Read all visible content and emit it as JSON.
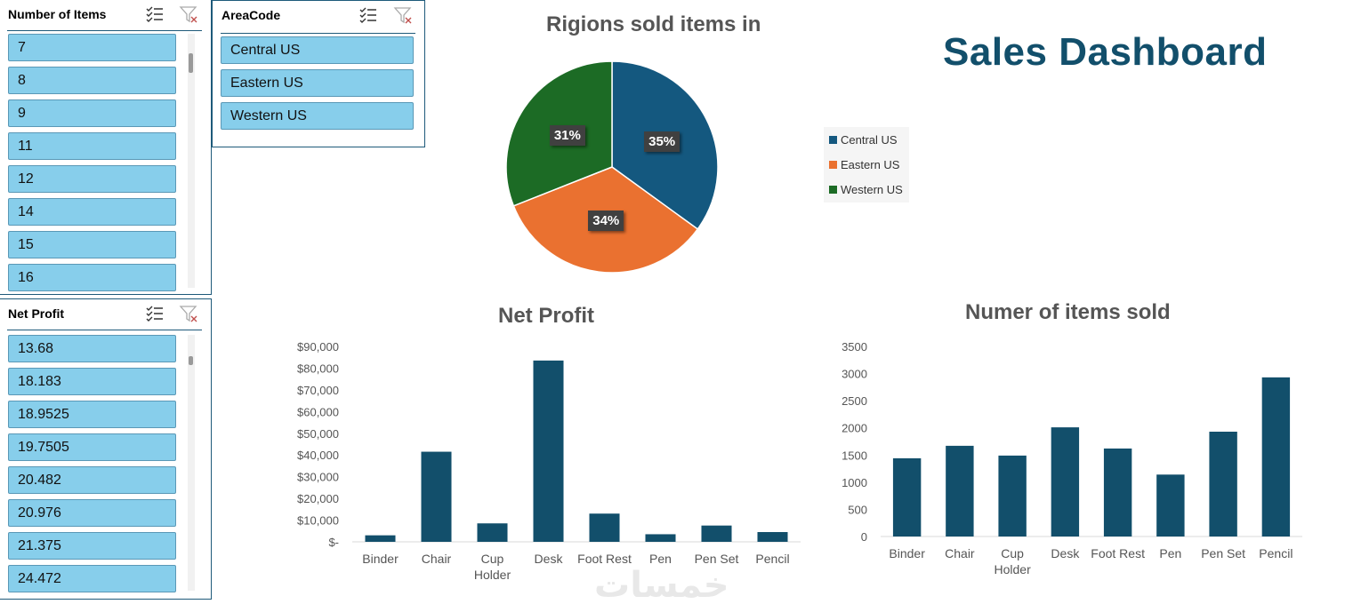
{
  "colors": {
    "accent": "#87ceeb",
    "central": "#14587f",
    "eastern": "#ea7130",
    "western": "#1c6b25",
    "bar": "#124f6b",
    "title": "#124f6b"
  },
  "slicer_items": {
    "title": "Number of Items",
    "icons": [
      "multi-select-icon",
      "clear-filter-icon"
    ],
    "items": [
      "7",
      "8",
      "9",
      "11",
      "12",
      "14",
      "15",
      "16"
    ]
  },
  "slicer_area": {
    "title": "AreaCode",
    "icons": [
      "multi-select-icon",
      "clear-filter-icon"
    ],
    "items": [
      "Central US",
      "Eastern US",
      "Western US"
    ]
  },
  "slicer_profit": {
    "title": "Net Profit",
    "icons": [
      "multi-select-icon",
      "clear-filter-icon"
    ],
    "items": [
      "13.68",
      "18.183",
      "18.9525",
      "19.7505",
      "20.482",
      "20.976",
      "21.375",
      "24.472"
    ]
  },
  "dashboard_title": "Sales Dashboard",
  "watermark": "خمسات",
  "chart_data": [
    {
      "type": "pie",
      "title": "Rigions sold items in",
      "categories": [
        "Central US",
        "Eastern US",
        "Western US"
      ],
      "values": [
        35,
        34,
        31
      ],
      "labels": [
        "35%",
        "34%",
        "31%"
      ],
      "legend": "right"
    },
    {
      "type": "bar",
      "title": "Net Profit",
      "categories": [
        "Binder",
        "Chair",
        "Cup Holder",
        "Desk",
        "Foot Rest",
        "Pen",
        "Pen Set",
        "Pencil"
      ],
      "values": [
        3000,
        41500,
        8500,
        83500,
        13000,
        3500,
        7500,
        4500
      ],
      "ylim": [
        0,
        90000
      ],
      "ticks": [
        "$-",
        "$10,000",
        "$20,000",
        "$30,000",
        "$40,000",
        "$50,000",
        "$60,000",
        "$70,000",
        "$80,000",
        "$90,000"
      ],
      "grid": false
    },
    {
      "type": "bar",
      "title": "Numer of items sold",
      "categories": [
        "Binder",
        "Chair",
        "Cup Holder",
        "Desk",
        "Foot Rest",
        "Pen",
        "Pen Set",
        "Pencil"
      ],
      "values": [
        1440,
        1670,
        1490,
        2010,
        1620,
        1140,
        1930,
        2930
      ],
      "ylim": [
        0,
        3500
      ],
      "ticks": [
        "0",
        "500",
        "1000",
        "1500",
        "2000",
        "2500",
        "3000",
        "3500"
      ],
      "grid": false
    }
  ]
}
